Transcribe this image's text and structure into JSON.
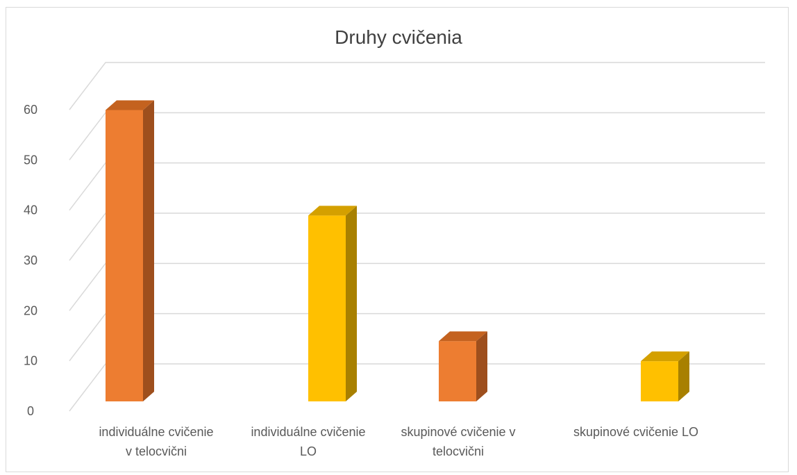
{
  "chart_data": {
    "type": "bar",
    "title": "Druhy cvičenia",
    "categories": [
      [
        "individuálne cvičenie",
        "v telocvični"
      ],
      [
        "individuálne cvičenie",
        "LO"
      ],
      [
        "skupinové cvičenie v",
        "telocvični"
      ],
      [
        "skupinové cvičenie LO"
      ]
    ],
    "values": [
      58,
      37,
      12,
      8
    ],
    "ylim": [
      0,
      60
    ],
    "yticks": [
      0,
      10,
      20,
      30,
      40,
      50,
      60
    ],
    "grid": true,
    "bar_style": "3d",
    "bar_colors": [
      "#ED7D31",
      "#FFC000",
      "#ED7D31",
      "#FFC000"
    ],
    "bar_side_colors": [
      "#9E4F1D",
      "#A88000",
      "#9E4F1D",
      "#A88000"
    ],
    "bar_top_colors": [
      "#C4621F",
      "#D4A000",
      "#C4621F",
      "#D4A000"
    ],
    "gridline_color": "#d9d9d9"
  }
}
